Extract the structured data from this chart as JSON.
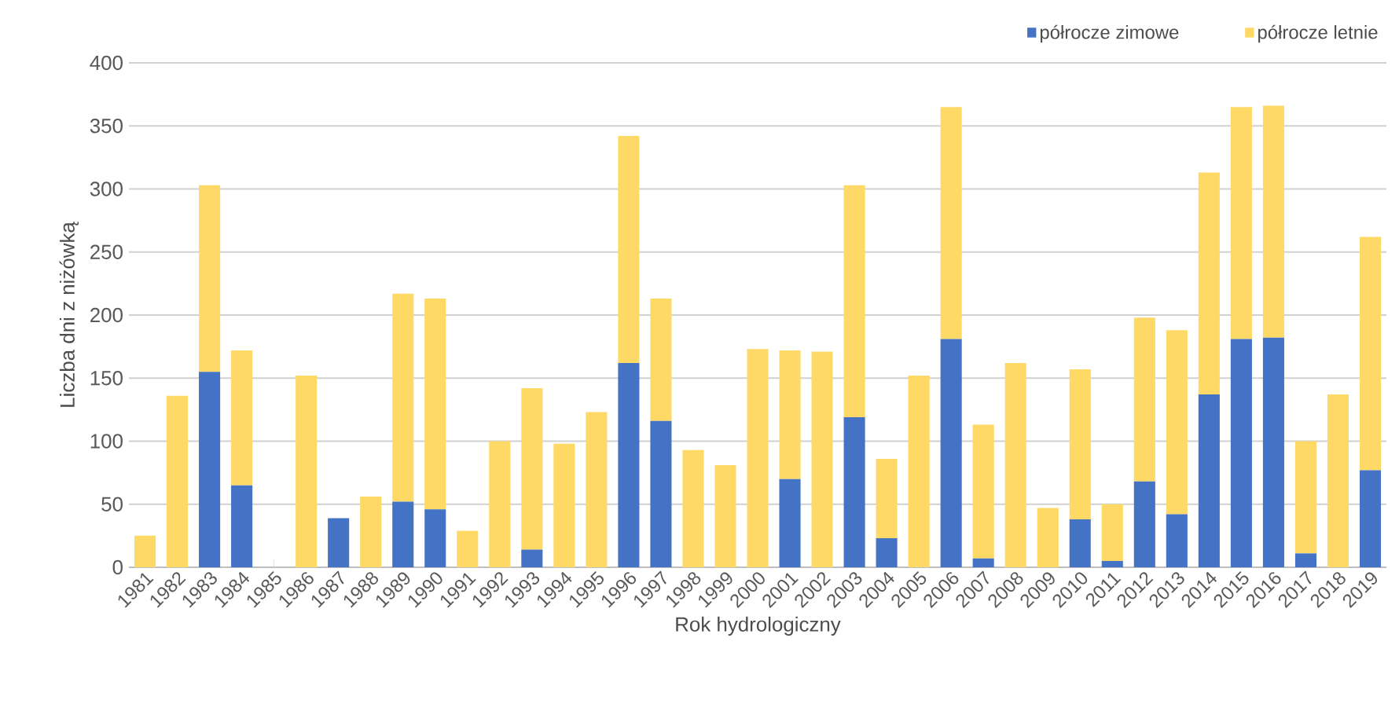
{
  "chart_data": {
    "type": "bar",
    "stacked": true,
    "xlabel": "Rok hydrologiczny",
    "ylabel": "Liczba dni z niżówką",
    "categories": [
      "1981",
      "1982",
      "1983",
      "1984",
      "1985",
      "1986",
      "1987",
      "1988",
      "1989",
      "1990",
      "1991",
      "1992",
      "1993",
      "1994",
      "1995",
      "1996",
      "1997",
      "1998",
      "1999",
      "2000",
      "2001",
      "2002",
      "2003",
      "2004",
      "2005",
      "2006",
      "2007",
      "2008",
      "2009",
      "2010",
      "2011",
      "2012",
      "2013",
      "2014",
      "2015",
      "2016",
      "2017",
      "2018",
      "2019"
    ],
    "series": [
      {
        "name": "półrocze zimowe",
        "color": "#4472c4",
        "values": [
          0,
          0,
          155,
          65,
          0,
          0,
          39,
          0,
          52,
          46,
          0,
          0,
          14,
          0,
          0,
          162,
          116,
          0,
          0,
          0,
          70,
          0,
          119,
          23,
          0,
          181,
          7,
          0,
          0,
          38,
          5,
          68,
          42,
          137,
          181,
          182,
          11,
          0,
          77
        ]
      },
      {
        "name": "półrocze letnie",
        "color": "#ffd966",
        "values": [
          25,
          136,
          148,
          107,
          0,
          152,
          0,
          56,
          165,
          167,
          29,
          100,
          128,
          98,
          123,
          180,
          97,
          93,
          81,
          173,
          102,
          171,
          184,
          63,
          152,
          184,
          106,
          162,
          47,
          119,
          45,
          130,
          146,
          176,
          184,
          184,
          89,
          137,
          185
        ]
      }
    ],
    "ylim": [
      0,
      400
    ],
    "yticks": [
      0,
      50,
      100,
      150,
      200,
      250,
      300,
      350,
      400
    ],
    "grid": "y",
    "legend": "top right"
  }
}
